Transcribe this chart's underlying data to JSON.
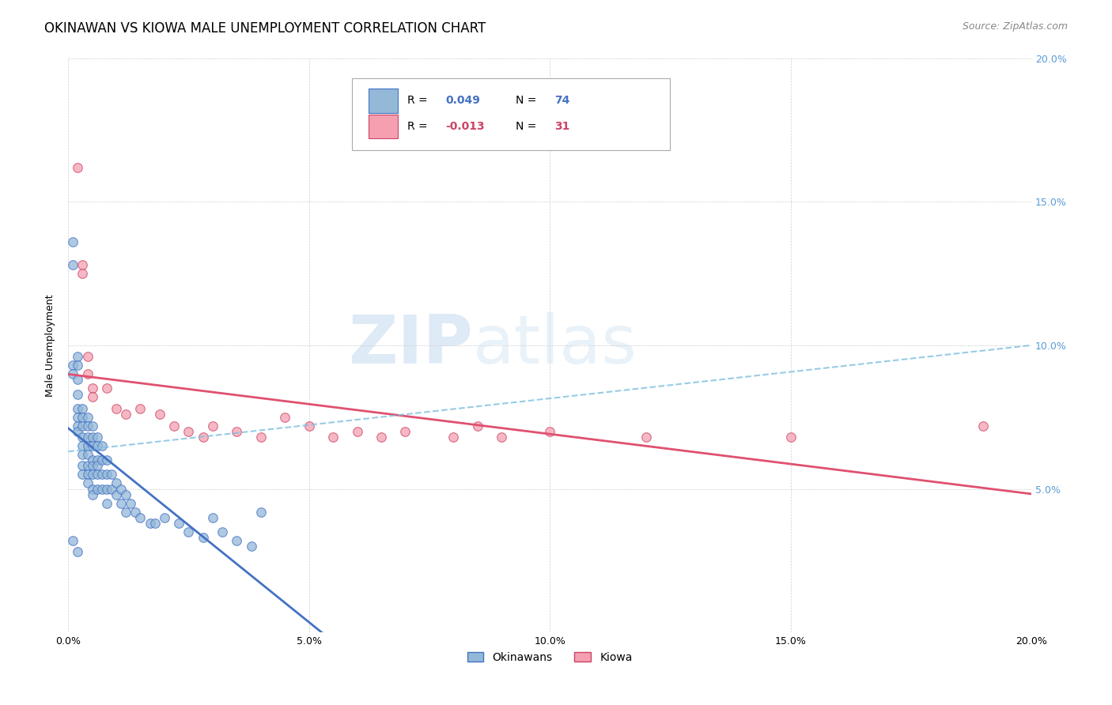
{
  "title": "OKINAWAN VS KIOWA MALE UNEMPLOYMENT CORRELATION CHART",
  "source": "Source: ZipAtlas.com",
  "ylabel": "Male Unemployment",
  "xlim": [
    0.0,
    0.2
  ],
  "ylim": [
    0.0,
    0.2
  ],
  "xticks": [
    0.0,
    0.05,
    0.1,
    0.15,
    0.2
  ],
  "yticks": [
    0.0,
    0.05,
    0.1,
    0.15,
    0.2
  ],
  "okinawan_color": "#93b8d8",
  "okinawan_edge_color": "#4472c4",
  "kiowa_color": "#f4a0b0",
  "kiowa_edge_color": "#cc4466",
  "okinawan_line_color": "#4472c4",
  "kiowa_line_color": "#e05070",
  "background_color": "#ffffff",
  "grid_color": "#d0d0d0",
  "right_tick_color": "#5b9bd5",
  "title_fontsize": 12,
  "axis_label_fontsize": 9,
  "tick_fontsize": 9,
  "source_fontsize": 9,
  "okinawan_points": [
    [
      0.001,
      0.136
    ],
    [
      0.001,
      0.128
    ],
    [
      0.001,
      0.093
    ],
    [
      0.001,
      0.09
    ],
    [
      0.002,
      0.096
    ],
    [
      0.002,
      0.093
    ],
    [
      0.002,
      0.088
    ],
    [
      0.002,
      0.083
    ],
    [
      0.002,
      0.078
    ],
    [
      0.002,
      0.075
    ],
    [
      0.002,
      0.072
    ],
    [
      0.002,
      0.07
    ],
    [
      0.003,
      0.078
    ],
    [
      0.003,
      0.075
    ],
    [
      0.003,
      0.072
    ],
    [
      0.003,
      0.068
    ],
    [
      0.003,
      0.065
    ],
    [
      0.003,
      0.062
    ],
    [
      0.003,
      0.058
    ],
    [
      0.003,
      0.055
    ],
    [
      0.004,
      0.075
    ],
    [
      0.004,
      0.072
    ],
    [
      0.004,
      0.068
    ],
    [
      0.004,
      0.065
    ],
    [
      0.004,
      0.062
    ],
    [
      0.004,
      0.058
    ],
    [
      0.004,
      0.055
    ],
    [
      0.004,
      0.052
    ],
    [
      0.005,
      0.072
    ],
    [
      0.005,
      0.068
    ],
    [
      0.005,
      0.065
    ],
    [
      0.005,
      0.06
    ],
    [
      0.005,
      0.058
    ],
    [
      0.005,
      0.055
    ],
    [
      0.005,
      0.05
    ],
    [
      0.005,
      0.048
    ],
    [
      0.006,
      0.068
    ],
    [
      0.006,
      0.065
    ],
    [
      0.006,
      0.06
    ],
    [
      0.006,
      0.058
    ],
    [
      0.006,
      0.055
    ],
    [
      0.006,
      0.05
    ],
    [
      0.007,
      0.065
    ],
    [
      0.007,
      0.06
    ],
    [
      0.007,
      0.055
    ],
    [
      0.007,
      0.05
    ],
    [
      0.008,
      0.06
    ],
    [
      0.008,
      0.055
    ],
    [
      0.008,
      0.05
    ],
    [
      0.008,
      0.045
    ],
    [
      0.009,
      0.055
    ],
    [
      0.009,
      0.05
    ],
    [
      0.01,
      0.052
    ],
    [
      0.01,
      0.048
    ],
    [
      0.011,
      0.05
    ],
    [
      0.011,
      0.045
    ],
    [
      0.012,
      0.048
    ],
    [
      0.012,
      0.042
    ],
    [
      0.013,
      0.045
    ],
    [
      0.014,
      0.042
    ],
    [
      0.015,
      0.04
    ],
    [
      0.017,
      0.038
    ],
    [
      0.018,
      0.038
    ],
    [
      0.02,
      0.04
    ],
    [
      0.023,
      0.038
    ],
    [
      0.025,
      0.035
    ],
    [
      0.028,
      0.033
    ],
    [
      0.03,
      0.04
    ],
    [
      0.032,
      0.035
    ],
    [
      0.035,
      0.032
    ],
    [
      0.038,
      0.03
    ],
    [
      0.04,
      0.042
    ],
    [
      0.001,
      0.032
    ],
    [
      0.002,
      0.028
    ]
  ],
  "kiowa_points": [
    [
      0.002,
      0.162
    ],
    [
      0.003,
      0.128
    ],
    [
      0.003,
      0.125
    ],
    [
      0.004,
      0.096
    ],
    [
      0.004,
      0.09
    ],
    [
      0.005,
      0.085
    ],
    [
      0.005,
      0.082
    ],
    [
      0.008,
      0.085
    ],
    [
      0.01,
      0.078
    ],
    [
      0.012,
      0.076
    ],
    [
      0.015,
      0.078
    ],
    [
      0.019,
      0.076
    ],
    [
      0.022,
      0.072
    ],
    [
      0.025,
      0.07
    ],
    [
      0.028,
      0.068
    ],
    [
      0.03,
      0.072
    ],
    [
      0.035,
      0.07
    ],
    [
      0.04,
      0.068
    ],
    [
      0.045,
      0.075
    ],
    [
      0.05,
      0.072
    ],
    [
      0.055,
      0.068
    ],
    [
      0.06,
      0.07
    ],
    [
      0.065,
      0.068
    ],
    [
      0.07,
      0.07
    ],
    [
      0.08,
      0.068
    ],
    [
      0.085,
      0.072
    ],
    [
      0.09,
      0.068
    ],
    [
      0.1,
      0.07
    ],
    [
      0.12,
      0.068
    ],
    [
      0.15,
      0.068
    ],
    [
      0.19,
      0.072
    ]
  ]
}
